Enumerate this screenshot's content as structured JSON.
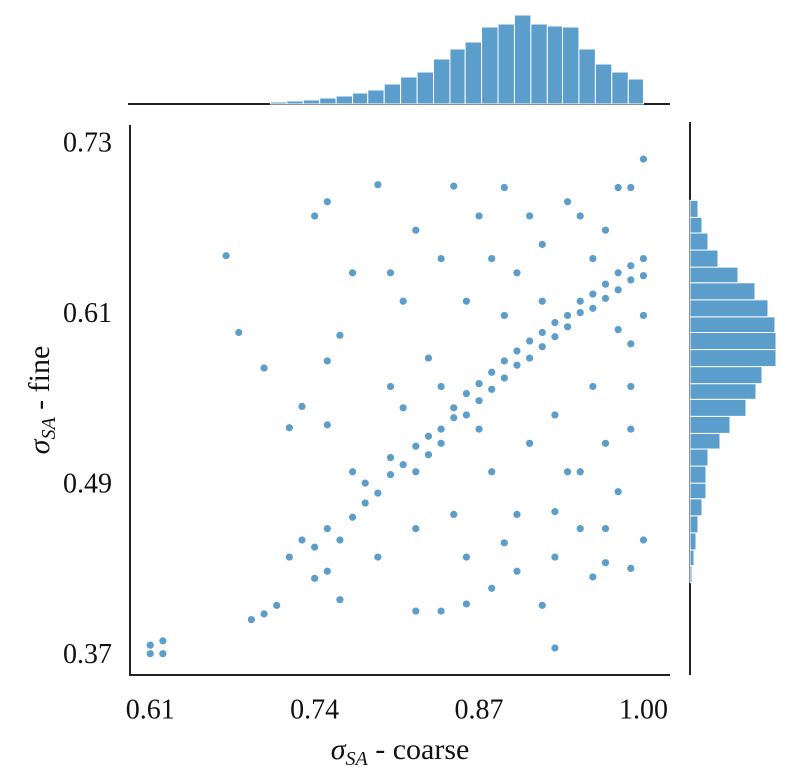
{
  "chart_data": [
    {
      "type": "scatter",
      "color": "#1f77b4",
      "xlabel": {
        "symbol": "σ",
        "subscript": "SA",
        "text": " - coarse"
      },
      "ylabel": {
        "symbol": "σ",
        "subscript": "SA",
        "text": " - fine"
      },
      "xlim": [
        0.594,
        1.021
      ],
      "ylim": [
        0.357,
        0.744
      ],
      "xticks": [
        0.61,
        0.74,
        0.87,
        {
          "value": 1,
          "label": "1.00"
        }
      ],
      "yticks": [
        0.37,
        0.49,
        0.61,
        0.73
      ],
      "x": [
        0.61,
        0.62,
        0.61,
        0.62,
        0.67,
        0.68,
        0.7,
        0.72,
        0.73,
        0.75,
        0.74,
        0.75,
        0.79,
        0.75,
        0.77,
        0.76,
        0.85,
        0.89,
        0.88,
        0.93,
        0.84,
        0.82,
        0.86,
        0.92,
        0.97,
        0.99,
        0.96,
        0.93,
        0.95,
        0.98,
        1.0,
        0.97,
        0.99,
        0.86,
        0.9,
        0.8,
        0.82,
        0.81,
        0.84,
        0.7,
        0.69,
        0.71,
        0.74,
        0.76,
        0.72,
        0.73,
        0.74,
        0.75,
        0.76,
        0.77,
        0.78,
        0.78,
        0.79,
        0.8,
        0.8,
        0.81,
        0.82,
        0.82,
        0.83,
        0.83,
        0.84,
        0.84,
        0.85,
        0.85,
        0.86,
        0.86,
        0.87,
        0.87,
        0.88,
        0.88,
        0.89,
        0.89,
        0.9,
        0.9,
        0.91,
        0.91,
        0.92,
        0.92,
        0.93,
        0.93,
        0.94,
        0.94,
        0.95,
        0.95,
        0.96,
        0.96,
        0.97,
        0.97,
        0.98,
        0.98,
        0.99,
        0.99,
        1.0,
        1.0,
        0.9,
        0.92,
        0.95,
        0.98,
        1.0,
        0.97,
        0.93,
        0.96,
        0.99,
        0.91,
        0.94,
        0.88,
        0.86,
        0.88,
        0.83,
        0.8,
        0.85,
        0.82,
        0.79,
        0.98,
        1.0,
        0.96,
        0.92,
        0.89,
        0.87,
        0.84,
        0.77,
        0.75,
        0.81,
        0.9,
        0.95,
        0.99,
        0.97,
        0.93,
        0.89,
        0.99,
        0.94,
        0.91,
        0.87
      ],
      "y": [
        0.378,
        0.381,
        0.372,
        0.372,
        0.652,
        0.598,
        0.573,
        0.531,
        0.546,
        0.533,
        0.68,
        0.69,
        0.702,
        0.578,
        0.64,
        0.596,
        0.701,
        0.7,
        0.418,
        0.376,
        0.402,
        0.402,
        0.407,
        0.406,
        0.436,
        0.432,
        0.426,
        0.472,
        0.46,
        0.486,
        0.452,
        0.52,
        0.56,
        0.44,
        0.43,
        0.64,
        0.67,
        0.62,
        0.65,
        0.4,
        0.396,
        0.406,
        0.425,
        0.41,
        0.44,
        0.452,
        0.447,
        0.46,
        0.452,
        0.468,
        0.478,
        0.492,
        0.485,
        0.498,
        0.51,
        0.505,
        0.518,
        0.5,
        0.525,
        0.512,
        0.53,
        0.52,
        0.538,
        0.545,
        0.54,
        0.555,
        0.55,
        0.562,
        0.558,
        0.57,
        0.566,
        0.578,
        0.575,
        0.585,
        0.58,
        0.592,
        0.598,
        0.588,
        0.605,
        0.595,
        0.61,
        0.602,
        0.62,
        0.612,
        0.625,
        0.615,
        0.632,
        0.622,
        0.64,
        0.628,
        0.645,
        0.635,
        0.65,
        0.638,
        0.64,
        0.66,
        0.68,
        0.7,
        0.72,
        0.67,
        0.54,
        0.56,
        0.59,
        0.52,
        0.5,
        0.5,
        0.62,
        0.65,
        0.58,
        0.56,
        0.47,
        0.46,
        0.44,
        0.6,
        0.61,
        0.65,
        0.62,
        0.61,
        0.53,
        0.56,
        0.5,
        0.43,
        0.545,
        0.47,
        0.5,
        0.53,
        0.46,
        0.44,
        0.45,
        0.7,
        0.69,
        0.68,
        0.68
      ]
    },
    {
      "type": "histogram",
      "orientation": "vertical",
      "color": "#5b9ecb",
      "bins": [
        0.705,
        0.718,
        0.731,
        0.744,
        0.757,
        0.77,
        0.782,
        0.795,
        0.808,
        0.821,
        0.834,
        0.847,
        0.859,
        0.872,
        0.885,
        0.898,
        0.911,
        0.924,
        0.936,
        0.949,
        0.962,
        0.975,
        0.988,
        1.0
      ],
      "counts": [
        2,
        3,
        4,
        6,
        8,
        11,
        14,
        20,
        27,
        32,
        45,
        55,
        62,
        77,
        80,
        89,
        80,
        78,
        77,
        55,
        40,
        32,
        25
      ]
    },
    {
      "type": "histogram",
      "orientation": "horizontal",
      "color": "#5b9ecb",
      "bins": [
        0.422,
        0.434,
        0.445,
        0.457,
        0.469,
        0.481,
        0.492,
        0.504,
        0.516,
        0.527,
        0.539,
        0.551,
        0.562,
        0.574,
        0.586,
        0.598,
        0.609,
        0.621,
        0.633,
        0.644,
        0.656,
        0.668,
        0.679,
        0.691
      ],
      "counts": [
        2,
        4,
        6,
        8,
        12,
        16,
        16,
        18,
        30,
        40,
        56,
        66,
        72,
        86,
        86,
        85,
        78,
        65,
        48,
        28,
        18,
        12,
        8
      ]
    }
  ]
}
